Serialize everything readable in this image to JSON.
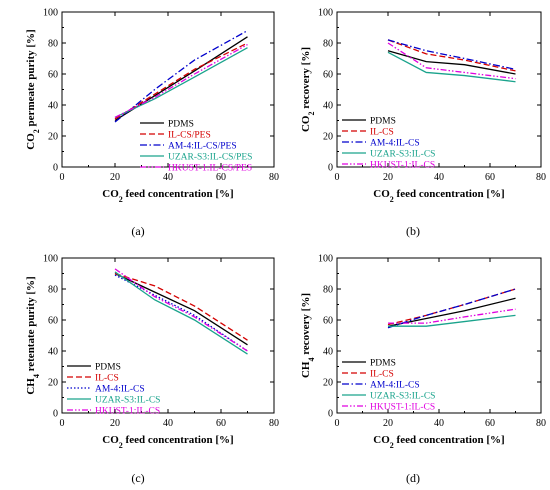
{
  "panels_order": [
    "a",
    "b",
    "c",
    "d"
  ],
  "colors": {
    "PDMS": "#000000",
    "IL": "#d40000",
    "AM4": "#0000cc",
    "UZAR": "#1aa38c",
    "HKUST": "#e000e0"
  },
  "chart_data": [
    {
      "id": "a",
      "panel_label": "(a)",
      "type": "line",
      "xlabel": {
        "main": "CO",
        "sub": "2",
        "rest": " feed concentration [%]"
      },
      "ylabel": {
        "main": "CO",
        "sub": "2",
        "rest": " permeate purity [%]"
      },
      "xlim": [
        0,
        80
      ],
      "ylim": [
        0,
        100
      ],
      "xticks": [
        0,
        20,
        40,
        60,
        80
      ],
      "yticks": [
        0,
        20,
        40,
        60,
        80,
        100
      ],
      "legend_position": "bottom-right",
      "x": [
        20,
        35,
        50,
        70
      ],
      "series": [
        {
          "name": "PDMS",
          "color": "#000000",
          "dash": "solid",
          "values": [
            30,
            46,
            62,
            84
          ]
        },
        {
          "name": "IL-CS/PES",
          "color": "#d40000",
          "dash": "dash",
          "values": [
            31,
            47,
            63,
            80
          ]
        },
        {
          "name": "AM-4:IL-CS/PES",
          "color": "#0000cc",
          "dash": "dashdot",
          "values": [
            29,
            50,
            69,
            88
          ]
        },
        {
          "name": "UZAR-S3:IL-CS/PES",
          "color": "#1aa38c",
          "dash": "solid",
          "values": [
            32,
            44,
            58,
            77
          ]
        },
        {
          "name": "HKUST-1:IL-CS/PES",
          "color": "#e000e0",
          "dash": "dashdotdot",
          "values": [
            32,
            45,
            60,
            79
          ]
        }
      ]
    },
    {
      "id": "b",
      "panel_label": "(b)",
      "type": "line",
      "xlabel": {
        "main": "CO",
        "sub": "2",
        "rest": " feed concentration [%]"
      },
      "ylabel": {
        "main": "CO",
        "sub": "2",
        "rest": " recovery [%]"
      },
      "xlim": [
        0,
        80
      ],
      "ylim": [
        0,
        100
      ],
      "xticks": [
        0,
        20,
        40,
        60,
        80
      ],
      "yticks": [
        0,
        20,
        40,
        60,
        80,
        100
      ],
      "legend_position": "bottom-left",
      "x": [
        20,
        35,
        50,
        70
      ],
      "series": [
        {
          "name": "PDMS",
          "color": "#000000",
          "dash": "solid",
          "values": [
            75,
            68,
            66,
            60
          ]
        },
        {
          "name": "IL-CS",
          "color": "#d40000",
          "dash": "dash",
          "values": [
            82,
            73,
            69,
            62
          ]
        },
        {
          "name": "AM-4:IL-CS",
          "color": "#0000cc",
          "dash": "dashdot",
          "values": [
            82,
            75,
            70,
            63
          ]
        },
        {
          "name": "UZAR-S3:IL-CS",
          "color": "#1aa38c",
          "dash": "solid",
          "values": [
            74,
            61,
            59,
            55
          ]
        },
        {
          "name": "HKUST-1:IL-CS",
          "color": "#e000e0",
          "dash": "dashdotdot",
          "values": [
            80,
            64,
            61,
            57
          ]
        }
      ]
    },
    {
      "id": "c",
      "panel_label": "(c)",
      "type": "line",
      "xlabel": {
        "main": "CO",
        "sub": "2",
        "rest": " feed concentration [%]"
      },
      "ylabel": {
        "main": "CH",
        "sub": "4",
        "rest": " retentate purity [%]"
      },
      "xlim": [
        0,
        80
      ],
      "ylim": [
        0,
        100
      ],
      "xticks": [
        0,
        20,
        40,
        60,
        80
      ],
      "yticks": [
        0,
        20,
        40,
        60,
        80,
        100
      ],
      "legend_position": "bottom-left",
      "x": [
        20,
        35,
        50,
        70
      ],
      "series": [
        {
          "name": "PDMS",
          "color": "#000000",
          "dash": "solid",
          "values": [
            90,
            78,
            66,
            44
          ]
        },
        {
          "name": "IL-CS",
          "color": "#d40000",
          "dash": "dash",
          "values": [
            90,
            82,
            69,
            47
          ]
        },
        {
          "name": "AM-4:IL-CS",
          "color": "#0000cc",
          "dash": "dot",
          "values": [
            89,
            76,
            63,
            40
          ]
        },
        {
          "name": "UZAR-S3:IL-CS",
          "color": "#1aa38c",
          "dash": "solid",
          "values": [
            91,
            73,
            60,
            38
          ]
        },
        {
          "name": "HKUST-1:IL-CS",
          "color": "#e000e0",
          "dash": "dashdotdot",
          "values": [
            93,
            75,
            62,
            40
          ]
        }
      ]
    },
    {
      "id": "d",
      "panel_label": "(d)",
      "type": "line",
      "xlabel": {
        "main": "CO",
        "sub": "2",
        "rest": " feed concentration [%]"
      },
      "ylabel": {
        "main": "CH",
        "sub": "4",
        "rest": " recovery [%]"
      },
      "xlim": [
        0,
        80
      ],
      "ylim": [
        0,
        100
      ],
      "xticks": [
        0,
        20,
        40,
        60,
        80
      ],
      "yticks": [
        0,
        20,
        40,
        60,
        80,
        100
      ],
      "legend_position": "bottom-left",
      "x": [
        20,
        35,
        50,
        70
      ],
      "series": [
        {
          "name": "PDMS",
          "color": "#000000",
          "dash": "solid",
          "values": [
            56,
            61,
            66,
            74
          ]
        },
        {
          "name": "IL-CS",
          "color": "#d40000",
          "dash": "dash",
          "values": [
            57,
            63,
            70,
            80
          ]
        },
        {
          "name": "AM-4:IL-CS",
          "color": "#0000cc",
          "dash": "dashdot",
          "values": [
            55,
            63,
            70,
            80
          ]
        },
        {
          "name": "UZAR-S3:IL-CS",
          "color": "#1aa38c",
          "dash": "solid",
          "values": [
            56,
            56,
            59,
            63
          ]
        },
        {
          "name": "HKUST-1:IL-CS",
          "color": "#e000e0",
          "dash": "dashdotdot",
          "values": [
            58,
            58,
            62,
            67
          ]
        }
      ]
    }
  ]
}
